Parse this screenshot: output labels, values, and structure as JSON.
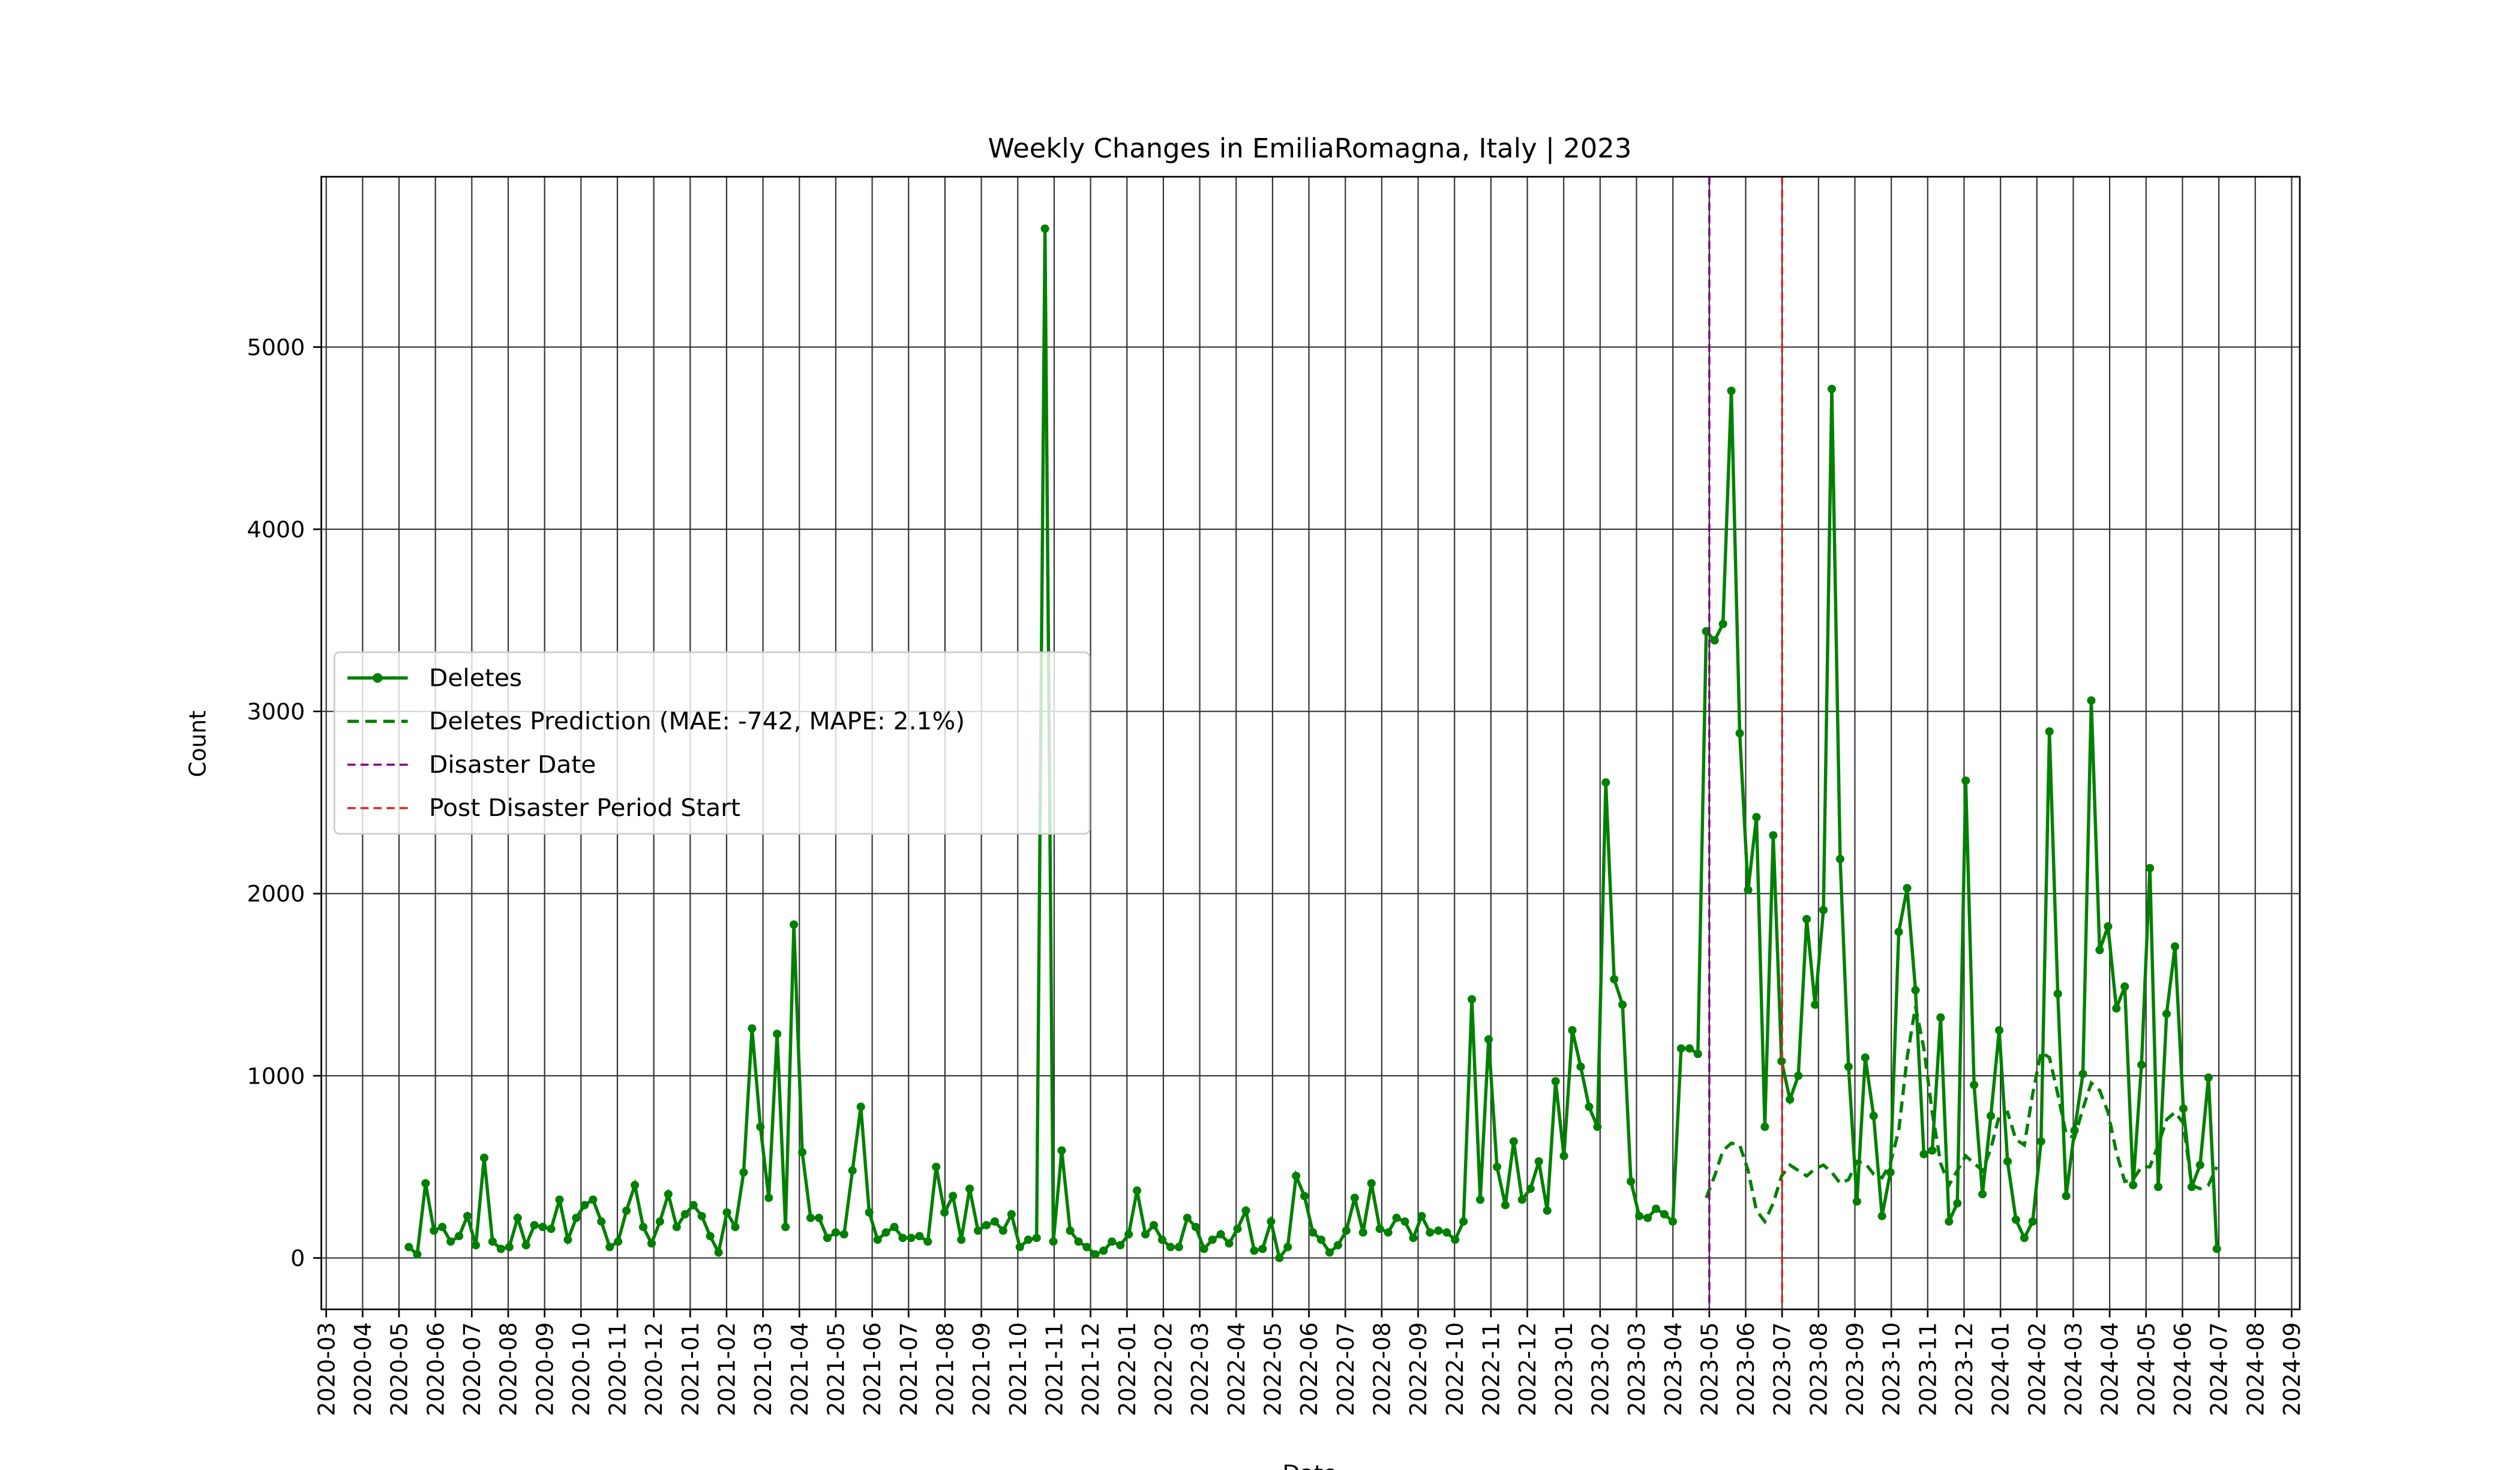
{
  "chart_data": {
    "type": "line",
    "title": "Weekly Changes in EmiliaRomagna, Italy | 2023",
    "xlabel": "Date",
    "ylabel": "Count",
    "xlim": [
      "2020-03",
      "2024-09"
    ],
    "xticks": [
      "2020-03",
      "2020-04",
      "2020-05",
      "2020-06",
      "2020-07",
      "2020-08",
      "2020-09",
      "2020-10",
      "2020-11",
      "2020-12",
      "2021-01",
      "2021-02",
      "2021-03",
      "2021-04",
      "2021-05",
      "2021-06",
      "2021-07",
      "2021-08",
      "2021-09",
      "2021-10",
      "2021-11",
      "2021-12",
      "2022-01",
      "2022-02",
      "2022-03",
      "2022-04",
      "2022-05",
      "2022-06",
      "2022-07",
      "2022-08",
      "2022-09",
      "2022-10",
      "2022-11",
      "2022-12",
      "2023-01",
      "2023-02",
      "2023-03",
      "2023-04",
      "2023-05",
      "2023-06",
      "2023-07",
      "2023-08",
      "2023-09",
      "2023-10",
      "2023-11",
      "2023-12",
      "2024-01",
      "2024-02",
      "2024-03",
      "2024-04",
      "2024-05",
      "2024-06",
      "2024-07",
      "2024-08",
      "2024-09"
    ],
    "ylim": [
      -282,
      5935
    ],
    "yticks": [
      0,
      1000,
      2000,
      3000,
      4000,
      5000
    ],
    "grid": true,
    "legend": "center left",
    "series": [
      {
        "name": "Deletes",
        "color": "#008000",
        "style": "solid-marker",
        "values": [
          60,
          20,
          410,
          150,
          170,
          90,
          120,
          230,
          70,
          550,
          90,
          50,
          60,
          220,
          70,
          180,
          170,
          160,
          320,
          100,
          220,
          290,
          320,
          200,
          60,
          90,
          260,
          400,
          170,
          80,
          200,
          350,
          170,
          240,
          290,
          230,
          120,
          30,
          250,
          170,
          470,
          1260,
          720,
          330,
          1230,
          170,
          1830,
          580,
          220,
          220,
          110,
          140,
          130,
          480,
          830,
          250,
          100,
          140,
          170,
          110,
          110,
          120,
          90,
          500,
          250,
          340,
          100,
          380,
          150,
          180,
          200,
          150,
          240,
          60,
          100,
          110,
          5650,
          90,
          590,
          150,
          90,
          60,
          20,
          40,
          90,
          70,
          130,
          370,
          130,
          180,
          100,
          60,
          60,
          220,
          170,
          50,
          100,
          130,
          80,
          160,
          260,
          40,
          50,
          200,
          0,
          60,
          450,
          340,
          140,
          100,
          30,
          70,
          150,
          330,
          140,
          410,
          160,
          140,
          220,
          200,
          110,
          230,
          140,
          150,
          140,
          100,
          200,
          1420,
          320,
          1200,
          500,
          290,
          640,
          320,
          380,
          530,
          260,
          970,
          560,
          1250,
          1050,
          830,
          720,
          2610,
          1530,
          1390,
          420,
          230,
          220,
          270,
          240,
          200,
          1150,
          1150,
          1120,
          3440,
          3390,
          3480,
          4760,
          2880,
          2020,
          2420,
          720,
          2320,
          1080,
          870,
          1000,
          1860,
          1390,
          1910,
          4770,
          2190,
          1050,
          310,
          1100,
          780,
          230,
          470,
          1790,
          2030,
          1470,
          570,
          590,
          1320,
          200,
          300,
          2620,
          950,
          350,
          780,
          1250,
          530,
          210,
          110,
          200,
          640,
          2890,
          1450,
          340,
          700,
          1010,
          3060,
          1690,
          1820,
          1370,
          1490,
          400,
          1060,
          2140,
          390,
          1340,
          1710,
          820,
          390,
          510,
          990,
          50
        ]
      },
      {
        "name": "Deletes Prediction (MAE: -742, MAPE: 2.1%)",
        "color": "#008000",
        "style": "dashed",
        "values": [
          null,
          null,
          null,
          null,
          null,
          null,
          null,
          null,
          null,
          null,
          null,
          null,
          null,
          null,
          null,
          null,
          null,
          null,
          null,
          null,
          null,
          null,
          null,
          null,
          null,
          null,
          null,
          null,
          null,
          null,
          null,
          null,
          null,
          null,
          null,
          null,
          null,
          null,
          null,
          null,
          null,
          null,
          null,
          null,
          null,
          null,
          null,
          null,
          null,
          null,
          null,
          null,
          null,
          null,
          null,
          null,
          null,
          null,
          null,
          null,
          null,
          null,
          null,
          null,
          null,
          null,
          null,
          null,
          null,
          null,
          null,
          null,
          null,
          null,
          null,
          null,
          null,
          null,
          null,
          null,
          null,
          null,
          null,
          null,
          null,
          null,
          null,
          null,
          null,
          null,
          null,
          null,
          null,
          null,
          null,
          null,
          null,
          null,
          null,
          null,
          null,
          null,
          null,
          null,
          null,
          null,
          null,
          null,
          null,
          null,
          null,
          null,
          null,
          null,
          null,
          null,
          null,
          null,
          null,
          null,
          null,
          null,
          null,
          null,
          null,
          null,
          null,
          null,
          null,
          null,
          null,
          null,
          null,
          null,
          null,
          null,
          null,
          null,
          null,
          null,
          null,
          null,
          null,
          null,
          null,
          null,
          null,
          null,
          null,
          null,
          null,
          null,
          null,
          null,
          null,
          330,
          450,
          590,
          630,
          620,
          480,
          260,
          200,
          300,
          450,
          510,
          480,
          450,
          490,
          510,
          470,
          410,
          430,
          530,
          520,
          460,
          440,
          520,
          700,
          1100,
          1380,
          1150,
          800,
          520,
          400,
          480,
          560,
          520,
          480,
          600,
          780,
          800,
          650,
          620,
          900,
          1130,
          1100,
          900,
          680,
          660,
          820,
          960,
          920,
          800,
          580,
          420,
          430,
          500,
          500,
          620,
          760,
          800,
          740,
          400,
          380,
          400,
          500
        ]
      }
    ],
    "vlines": [
      {
        "name": "Disaster Date",
        "x": "2023-05",
        "color": "#800080"
      },
      {
        "name": "Post Disaster Period Start",
        "x": "2023-07",
        "color": "#d62728"
      }
    ]
  }
}
